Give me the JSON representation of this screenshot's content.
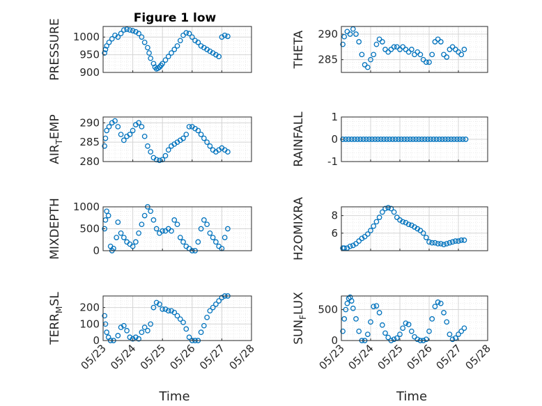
{
  "figure": {
    "title": "Figure 1 low"
  },
  "style": {
    "marker_color": "#0072bd",
    "axis_color": "#262626",
    "grid_color": "#dfdfdf"
  },
  "chart_data": [
    {
      "type": "scatter",
      "key": "pressure",
      "ylabel": "PRESSURE",
      "title": "Figure 1 low",
      "xlim": [
        0,
        5
      ],
      "ylim": [
        900,
        1030
      ],
      "yticks": [
        900,
        950,
        1000
      ],
      "xticklabels": [
        "05/23",
        "05/24",
        "05/25",
        "05/26",
        "05/27",
        "05/28"
      ],
      "xlabel": "",
      "x": [
        0.05,
        0.08,
        0.12,
        0.2,
        0.3,
        0.4,
        0.5,
        0.6,
        0.7,
        0.8,
        0.9,
        1.0,
        1.1,
        1.2,
        1.3,
        1.4,
        1.5,
        1.55,
        1.6,
        1.7,
        1.75,
        1.8,
        1.85,
        1.9,
        1.95,
        2.0,
        2.1,
        2.2,
        2.3,
        2.4,
        2.5,
        2.6,
        2.7,
        2.8,
        2.9,
        3.0,
        3.1,
        3.2,
        3.3,
        3.4,
        3.5,
        3.6,
        3.7,
        3.8,
        3.9,
        4.0,
        4.1,
        4.2
      ],
      "y": [
        955,
        965,
        975,
        985,
        995,
        1005,
        1000,
        1010,
        1020,
        1022,
        1020,
        1018,
        1015,
        1010,
        1000,
        985,
        970,
        955,
        940,
        925,
        915,
        910,
        912,
        915,
        920,
        925,
        935,
        945,
        955,
        965,
        975,
        990,
        1005,
        1012,
        1010,
        1000,
        990,
        985,
        975,
        970,
        965,
        960,
        955,
        950,
        945,
        1000,
        1005,
        1002
      ]
    },
    {
      "type": "scatter",
      "key": "theta",
      "ylabel": "THETA",
      "xlim": [
        0,
        5
      ],
      "ylim": [
        282.5,
        291.5
      ],
      "yticks": [
        285,
        290
      ],
      "xticklabels": [
        "05/23",
        "05/24",
        "05/25",
        "05/26",
        "05/27",
        "05/28"
      ],
      "xlabel": "",
      "x": [
        0.05,
        0.1,
        0.2,
        0.3,
        0.4,
        0.5,
        0.6,
        0.7,
        0.8,
        0.9,
        1.0,
        1.1,
        1.2,
        1.3,
        1.4,
        1.5,
        1.6,
        1.7,
        1.8,
        1.9,
        2.0,
        2.1,
        2.2,
        2.3,
        2.4,
        2.5,
        2.6,
        2.7,
        2.8,
        2.9,
        3.0,
        3.1,
        3.2,
        3.3,
        3.4,
        3.5,
        3.6,
        3.7,
        3.8,
        3.9,
        4.0,
        4.1,
        4.2
      ],
      "y": [
        288,
        289.5,
        290.5,
        290,
        291,
        290,
        288.5,
        286,
        284,
        283.5,
        285,
        286,
        288,
        289,
        288.5,
        287,
        286.5,
        287,
        287.5,
        287.5,
        287,
        287.5,
        287,
        286.5,
        287,
        286,
        286.5,
        286,
        285,
        284.5,
        284.5,
        286,
        288.5,
        289,
        288.5,
        286,
        285.5,
        287,
        287.5,
        287,
        286.5,
        286,
        287
      ]
    },
    {
      "type": "scatter",
      "key": "air_temp",
      "ylabel": "AIR_TEMP",
      "ylabel_main": "AIR",
      "ylabel_sub": "T",
      "ylabel_rest": "EMP",
      "xlim": [
        0,
        5
      ],
      "ylim": [
        280,
        291.5
      ],
      "yticks": [
        280,
        285,
        290
      ],
      "xticklabels": [
        "05/23",
        "05/24",
        "05/25",
        "05/26",
        "05/27",
        "05/28"
      ],
      "xlabel": "",
      "x": [
        0.05,
        0.08,
        0.12,
        0.2,
        0.3,
        0.4,
        0.5,
        0.6,
        0.7,
        0.8,
        0.9,
        1.0,
        1.1,
        1.2,
        1.3,
        1.4,
        1.5,
        1.6,
        1.7,
        1.8,
        1.9,
        2.0,
        2.1,
        2.2,
        2.3,
        2.4,
        2.5,
        2.6,
        2.7,
        2.8,
        2.9,
        3.0,
        3.1,
        3.2,
        3.3,
        3.4,
        3.5,
        3.6,
        3.7,
        3.8,
        3.9,
        4.0,
        4.1,
        4.2
      ],
      "y": [
        284,
        286,
        288,
        289,
        290,
        290.5,
        289,
        287,
        285.5,
        286.5,
        287,
        288,
        289.5,
        290,
        289,
        286.5,
        284,
        282.5,
        281,
        280.5,
        280.3,
        280.5,
        281.5,
        283,
        284,
        284.5,
        285,
        285.5,
        286,
        287,
        289,
        289,
        288.5,
        288,
        287,
        286,
        285,
        284,
        283,
        282.5,
        283,
        283.5,
        283,
        282.5
      ]
    },
    {
      "type": "scatter",
      "key": "rainfall",
      "ylabel": "RAINFALL",
      "xlim": [
        0,
        5
      ],
      "ylim": [
        -1,
        1
      ],
      "yticks": [
        -1,
        0,
        1
      ],
      "xticklabels": [
        "05/23",
        "05/24",
        "05/25",
        "05/26",
        "05/27",
        "05/28"
      ],
      "xlabel": "",
      "x": [
        0.05,
        0.15,
        0.25,
        0.35,
        0.45,
        0.55,
        0.65,
        0.75,
        0.85,
        0.95,
        1.05,
        1.15,
        1.25,
        1.35,
        1.45,
        1.55,
        1.65,
        1.75,
        1.85,
        1.95,
        2.05,
        2.15,
        2.25,
        2.35,
        2.45,
        2.55,
        2.65,
        2.75,
        2.85,
        2.95,
        3.05,
        3.15,
        3.25,
        3.35,
        3.45,
        3.55,
        3.65,
        3.75,
        3.85,
        3.95,
        4.05,
        4.15,
        4.25
      ],
      "y": [
        0,
        0,
        0,
        0,
        0,
        0,
        0,
        0,
        0,
        0,
        0,
        0,
        0,
        0,
        0,
        0,
        0,
        0,
        0,
        0,
        0,
        0,
        0,
        0,
        0,
        0,
        0,
        0,
        0,
        0,
        0,
        0,
        0,
        0,
        0,
        0,
        0,
        0,
        0,
        0,
        0,
        0,
        0
      ]
    },
    {
      "type": "scatter",
      "key": "mixdepth",
      "ylabel": "MIXDEPTH",
      "xlim": [
        0,
        5
      ],
      "ylim": [
        0,
        1000
      ],
      "yticks": [
        0,
        500,
        1000
      ],
      "xticklabels": [
        "05/23",
        "05/24",
        "05/25",
        "05/26",
        "05/27",
        "05/28"
      ],
      "xlabel": "",
      "x": [
        0.05,
        0.08,
        0.12,
        0.18,
        0.25,
        0.3,
        0.35,
        0.45,
        0.5,
        0.6,
        0.7,
        0.8,
        0.9,
        1.0,
        1.1,
        1.2,
        1.3,
        1.4,
        1.5,
        1.6,
        1.7,
        1.8,
        1.9,
        2.0,
        2.1,
        2.2,
        2.3,
        2.4,
        2.5,
        2.6,
        2.7,
        2.8,
        2.9,
        3.0,
        3.1,
        3.2,
        3.3,
        3.4,
        3.5,
        3.6,
        3.7,
        3.8,
        3.9,
        4.0,
        4.1,
        4.2
      ],
      "y": [
        500,
        700,
        900,
        800,
        100,
        0,
        50,
        300,
        650,
        400,
        300,
        200,
        150,
        100,
        200,
        400,
        600,
        800,
        1000,
        900,
        700,
        500,
        400,
        450,
        450,
        500,
        450,
        700,
        600,
        300,
        200,
        100,
        50,
        0,
        0,
        200,
        500,
        700,
        600,
        400,
        300,
        200,
        100,
        50,
        300,
        500
      ]
    },
    {
      "type": "scatter",
      "key": "h2omixra",
      "ylabel": "H2OMIXRA",
      "xlim": [
        0,
        5
      ],
      "ylim": [
        4,
        9
      ],
      "yticks": [
        6,
        8
      ],
      "xticklabels": [
        "05/23",
        "05/24",
        "05/25",
        "05/26",
        "05/27",
        "05/28"
      ],
      "xlabel": "",
      "x": [
        0.05,
        0.1,
        0.2,
        0.3,
        0.4,
        0.5,
        0.6,
        0.7,
        0.8,
        0.9,
        1.0,
        1.1,
        1.2,
        1.3,
        1.4,
        1.5,
        1.6,
        1.7,
        1.8,
        1.9,
        2.0,
        2.1,
        2.2,
        2.3,
        2.4,
        2.5,
        2.6,
        2.7,
        2.8,
        2.9,
        3.0,
        3.1,
        3.2,
        3.3,
        3.4,
        3.5,
        3.6,
        3.7,
        3.8,
        3.9,
        4.0,
        4.1,
        4.2
      ],
      "y": [
        4.3,
        4.3,
        4.3,
        4.5,
        4.6,
        4.8,
        5.1,
        5.4,
        5.6,
        5.9,
        6.3,
        6.8,
        7.3,
        7.8,
        8.4,
        8.8,
        8.9,
        8.8,
        8.4,
        7.8,
        7.5,
        7.3,
        7.2,
        7.0,
        6.9,
        6.7,
        6.5,
        6.3,
        6.0,
        5.5,
        5.0,
        4.9,
        4.9,
        4.8,
        4.8,
        4.7,
        4.8,
        4.9,
        5.0,
        5.1,
        5.1,
        5.2,
        5.2
      ]
    },
    {
      "type": "scatter",
      "key": "terr_msl",
      "ylabel": "TERR_MSL",
      "ylabel_main": "TERR",
      "ylabel_sub": "M",
      "ylabel_rest": "SL",
      "xlim": [
        0,
        5
      ],
      "ylim": [
        0,
        270
      ],
      "yticks": [
        0,
        100,
        200
      ],
      "xticklabels": [
        "05/23",
        "05/24",
        "05/25",
        "05/26",
        "05/27",
        "05/28"
      ],
      "xlabel": "Time",
      "x": [
        0.05,
        0.08,
        0.12,
        0.18,
        0.25,
        0.35,
        0.5,
        0.6,
        0.7,
        0.8,
        0.9,
        1.0,
        1.1,
        1.2,
        1.3,
        1.4,
        1.5,
        1.6,
        1.7,
        1.8,
        1.9,
        2.0,
        2.1,
        2.2,
        2.3,
        2.4,
        2.5,
        2.6,
        2.7,
        2.8,
        2.9,
        3.0,
        3.1,
        3.2,
        3.3,
        3.4,
        3.5,
        3.6,
        3.7,
        3.8,
        3.9,
        4.0,
        4.1,
        4.2
      ],
      "y": [
        150,
        100,
        50,
        20,
        0,
        0,
        30,
        80,
        90,
        60,
        20,
        10,
        20,
        10,
        50,
        80,
        60,
        100,
        200,
        230,
        220,
        190,
        190,
        180,
        180,
        170,
        150,
        130,
        110,
        70,
        20,
        0,
        0,
        0,
        50,
        90,
        140,
        180,
        200,
        220,
        240,
        260,
        270,
        270
      ]
    },
    {
      "type": "scatter",
      "key": "sun_flux",
      "ylabel": "SUN_FLUX",
      "ylabel_main": "SUN",
      "ylabel_sub": "F",
      "ylabel_rest": "LUX",
      "xlim": [
        0,
        5
      ],
      "ylim": [
        0,
        720
      ],
      "yticks": [
        0,
        500
      ],
      "xticklabels": [
        "05/23",
        "05/24",
        "05/25",
        "05/26",
        "05/27",
        "05/28"
      ],
      "xlabel": "Time",
      "x": [
        0.05,
        0.1,
        0.15,
        0.2,
        0.25,
        0.3,
        0.35,
        0.4,
        0.5,
        0.6,
        0.7,
        0.8,
        0.9,
        1.0,
        1.1,
        1.2,
        1.3,
        1.4,
        1.5,
        1.6,
        1.7,
        1.8,
        1.9,
        2.0,
        2.1,
        2.2,
        2.3,
        2.4,
        2.5,
        2.6,
        2.7,
        2.8,
        2.9,
        3.0,
        3.1,
        3.2,
        3.3,
        3.4,
        3.5,
        3.6,
        3.7,
        3.8,
        3.9,
        4.0,
        4.1,
        4.2
      ],
      "y": [
        150,
        350,
        500,
        600,
        680,
        700,
        640,
        520,
        350,
        150,
        0,
        0,
        100,
        300,
        550,
        560,
        450,
        250,
        120,
        50,
        0,
        20,
        40,
        100,
        200,
        280,
        260,
        150,
        60,
        20,
        0,
        0,
        20,
        150,
        350,
        550,
        620,
        600,
        450,
        300,
        100,
        20,
        40,
        100,
        150,
        200
      ]
    }
  ]
}
